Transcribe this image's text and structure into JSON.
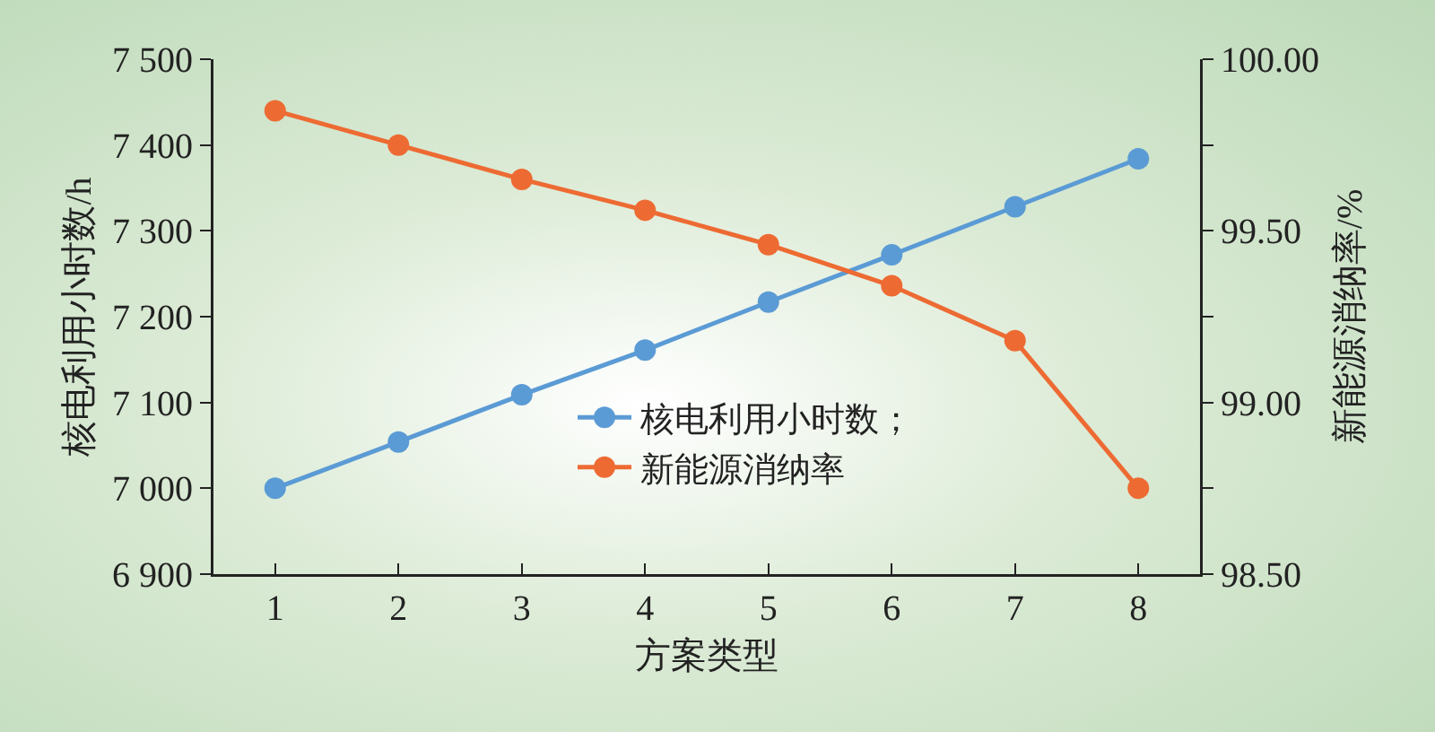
{
  "chart_data": {
    "type": "line",
    "xlabel": "方案类型",
    "ylabel": "核电利用小时数/h",
    "y2label": "新能源消纳率/%",
    "x": [
      1,
      2,
      3,
      4,
      5,
      6,
      7,
      8
    ],
    "xlim": [
      0.5,
      8.5
    ],
    "xticks": [
      1,
      2,
      3,
      4,
      5,
      6,
      7,
      8
    ],
    "ylim": [
      6900,
      7500
    ],
    "yticks": [
      {
        "value": 6900,
        "label": "6 900"
      },
      {
        "value": 7000,
        "label": "7 000"
      },
      {
        "value": 7100,
        "label": "7 100"
      },
      {
        "value": 7200,
        "label": "7 200"
      },
      {
        "value": 7300,
        "label": "7 300"
      },
      {
        "value": 7400,
        "label": "7 400"
      },
      {
        "value": 7500,
        "label": "7 500"
      }
    ],
    "y2lim": [
      98.5,
      100
    ],
    "y2ticks": [
      {
        "value": 98.5,
        "label": "98.50"
      },
      {
        "value": 98.75,
        "label": null
      },
      {
        "value": 99,
        "label": "99.00"
      },
      {
        "value": 99.25,
        "label": null
      },
      {
        "value": 99.5,
        "label": "99.50"
      },
      {
        "value": 99.75,
        "label": null
      },
      {
        "value": 100,
        "label": "100.00"
      }
    ],
    "series": [
      {
        "name": "核电利用小时数；",
        "color": "#5b9bd5",
        "values": [
          7000,
          7054,
          7109,
          7161,
          7217,
          7272,
          7328,
          7384
        ]
      },
      {
        "name": "新能源消纳率",
        "color": "#ed6b33",
        "axis": "y2",
        "values": [
          99.85,
          99.75,
          99.65,
          99.56,
          99.46,
          99.34,
          99.18,
          98.75
        ]
      }
    ],
    "marker": "circle",
    "line_style": "solid",
    "grid": false,
    "legend": "bottom"
  }
}
